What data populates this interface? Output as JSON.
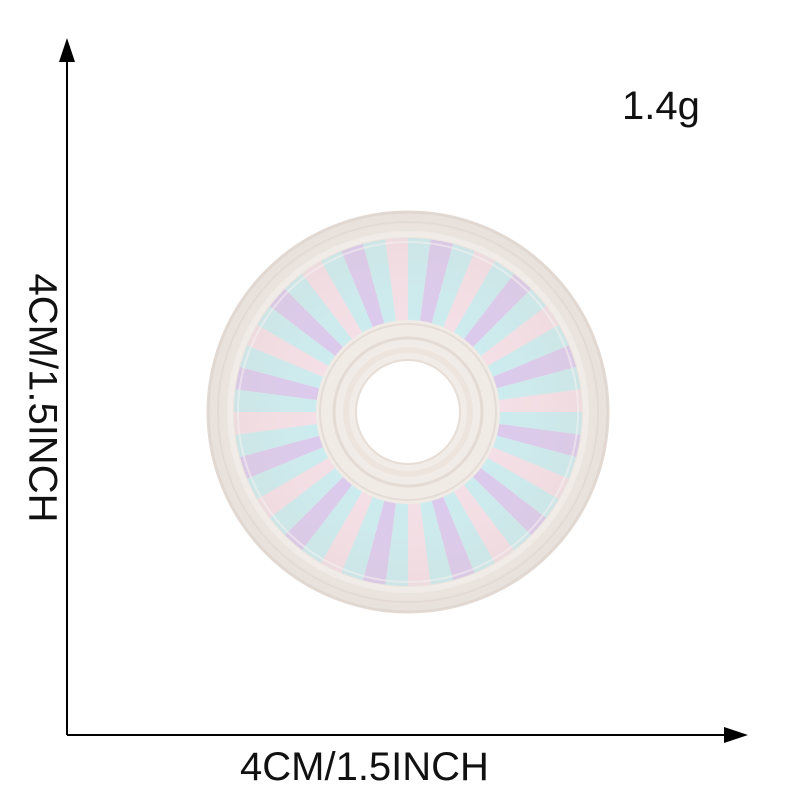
{
  "product": {
    "weight": "1.4g",
    "width_label": "4CM/1.5INCH",
    "height_label": "4CM/1.5INCH",
    "image_icon": "embroidered-ring-patch",
    "colors": {
      "border": "#f1ebe6",
      "stripe_blue": "#c6ecf0",
      "stripe_purple": "#d9c4ee",
      "stripe_pink": "#f6dde6",
      "axis": "#000000"
    }
  }
}
